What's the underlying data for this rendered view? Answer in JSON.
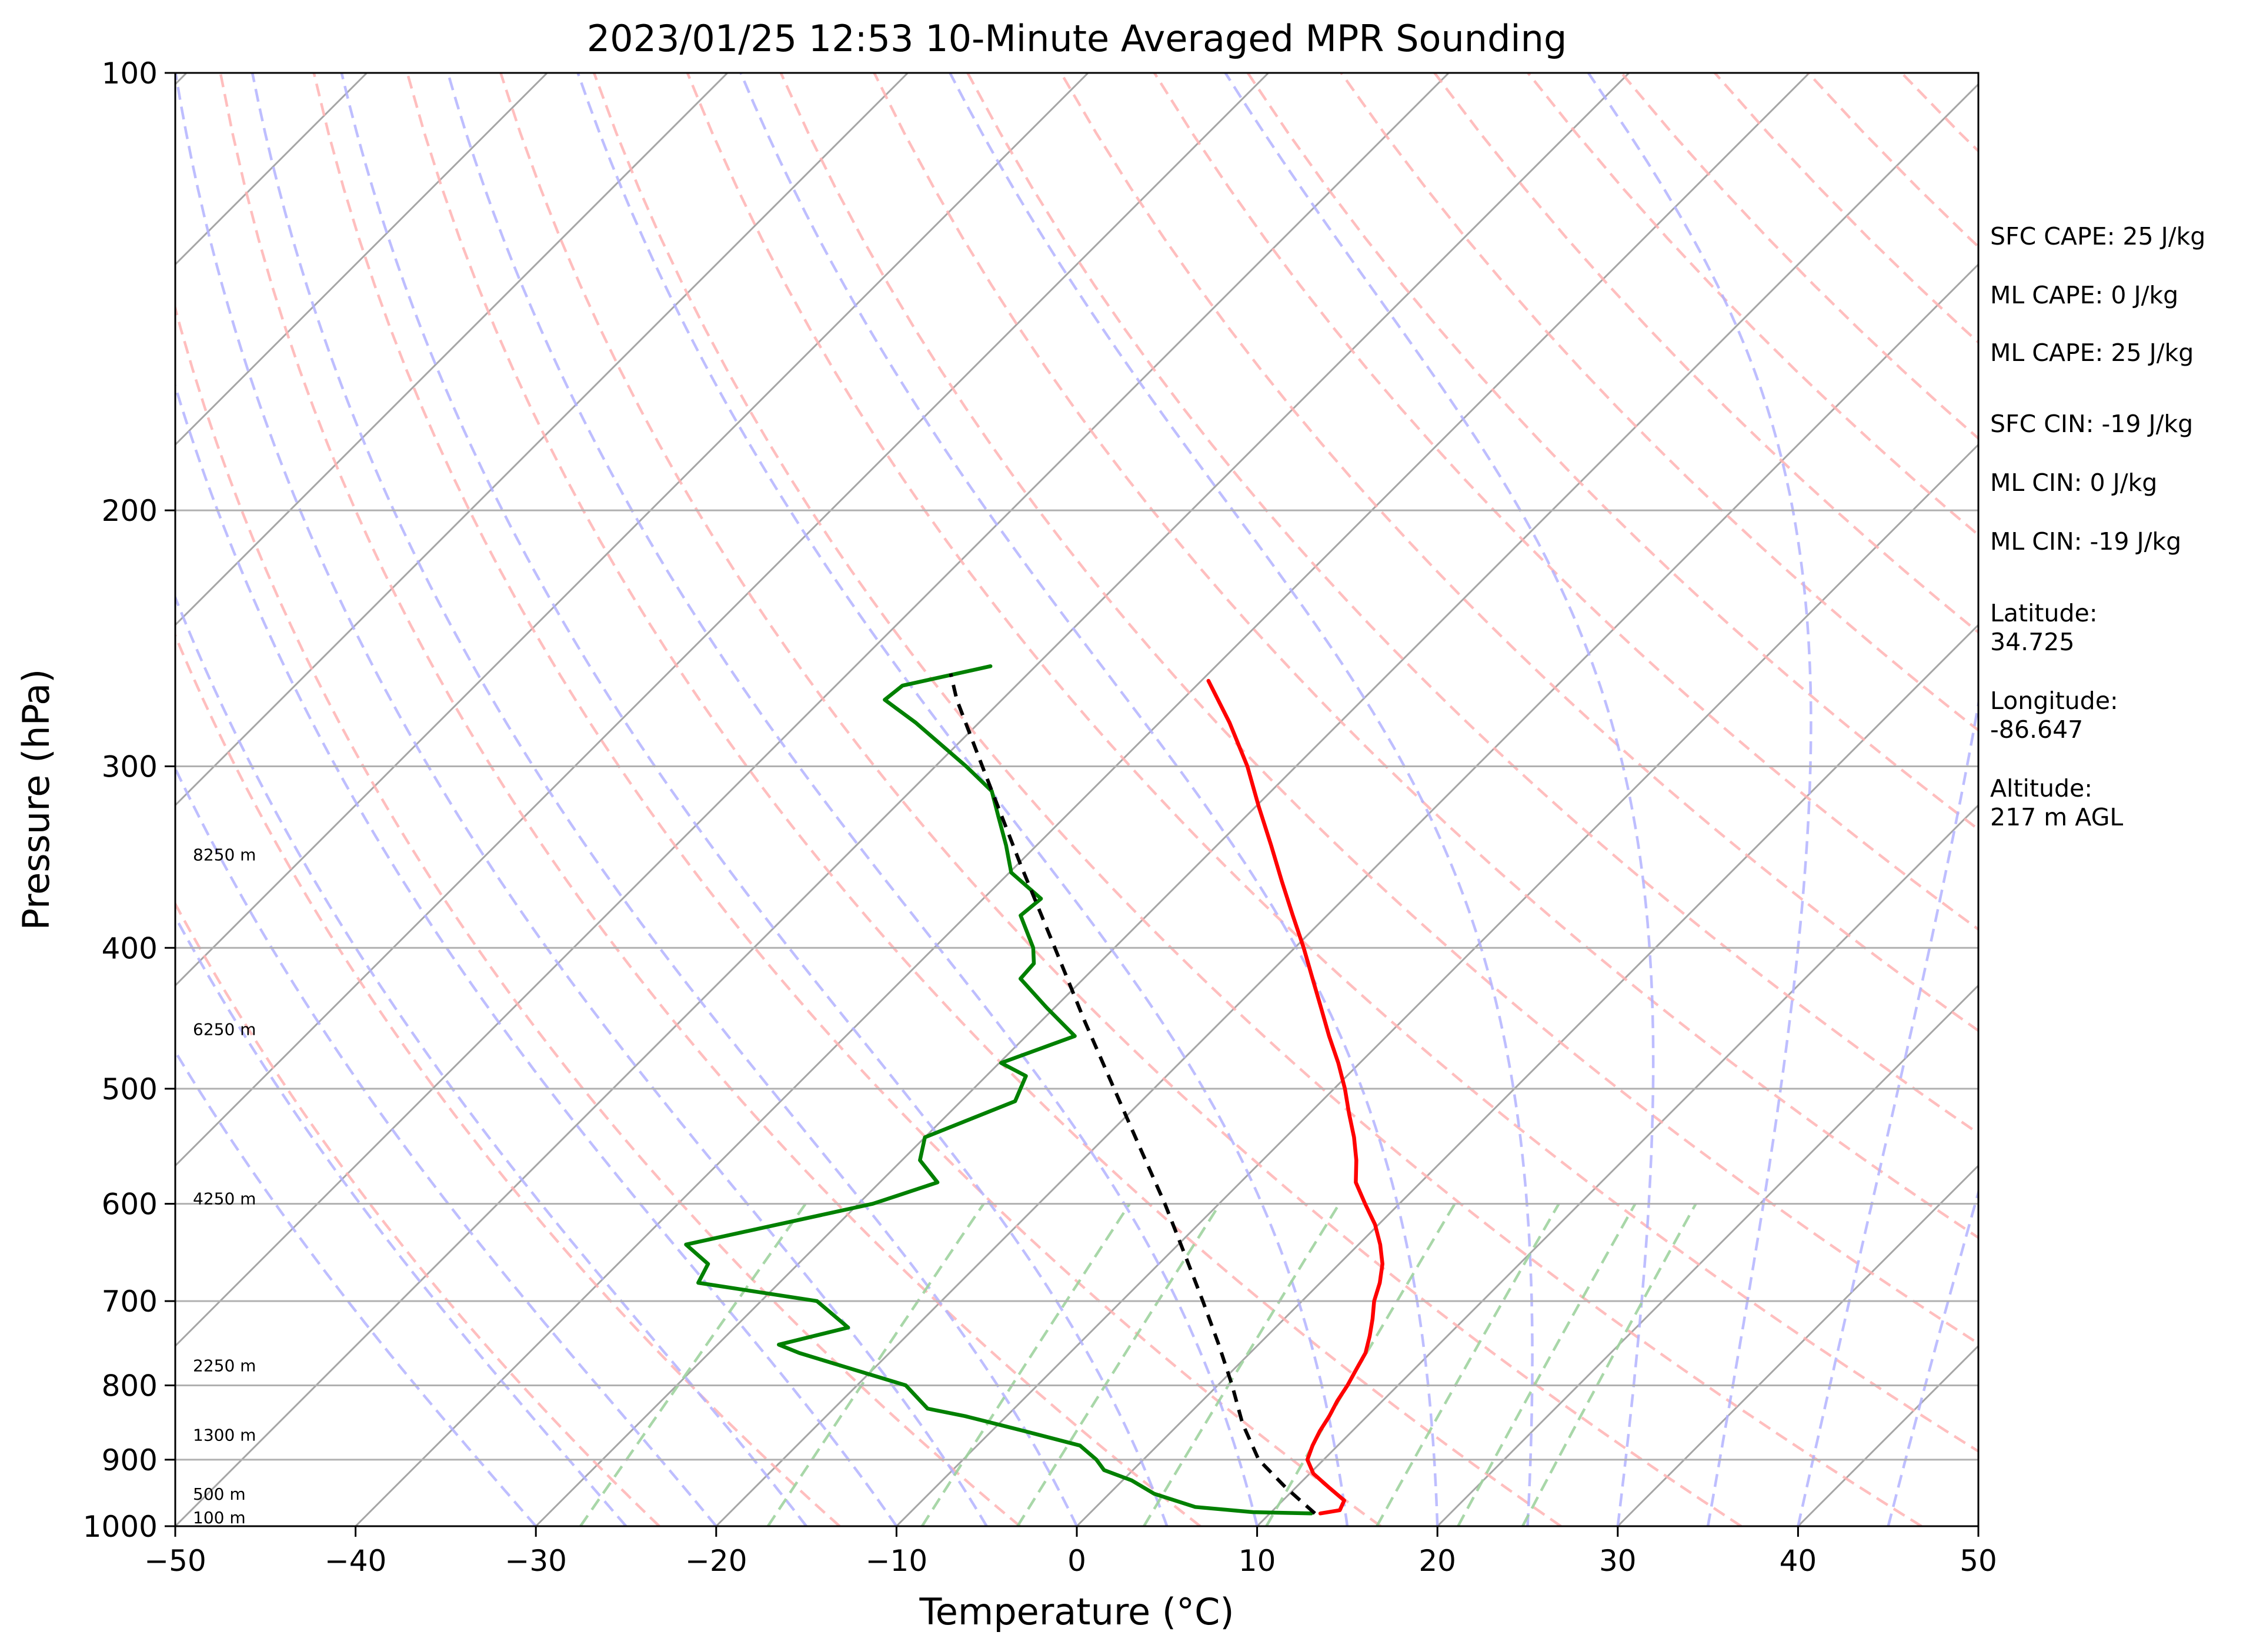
{
  "chart_data": {
    "type": "line",
    "title": "2023/01/25 12:53 10-Minute Averaged MPR Sounding",
    "xlabel": "Temperature (°C)",
    "ylabel": "Pressure (hPa)",
    "xlim": [
      -50,
      50
    ],
    "ylim": [
      1000,
      100
    ],
    "y_scale": "log",
    "skew": "skew-T (45 degree isotherms)",
    "x_ticks": [
      -50,
      -40,
      -30,
      -20,
      -10,
      0,
      10,
      20,
      30,
      40,
      50
    ],
    "y_ticks": [
      100,
      200,
      300,
      400,
      500,
      600,
      700,
      800,
      900,
      1000
    ],
    "grid": true,
    "background_lines": {
      "isotherms_color": "#a6a6a6",
      "dry_adiabats_color": "#ffb3b3",
      "moist_adiabats_color": "#b3b3ff",
      "mixing_ratio_color": "#9fd39f"
    },
    "series": [
      {
        "role": "temperature",
        "color": "#ff0000",
        "points": [
          {
            "p": 980,
            "t": 12.8
          },
          {
            "p": 975,
            "t": 13.7
          },
          {
            "p": 960,
            "t": 13.4
          },
          {
            "p": 940,
            "t": 11.8
          },
          {
            "p": 920,
            "t": 10.2
          },
          {
            "p": 900,
            "t": 9.1
          },
          {
            "p": 880,
            "t": 8.6
          },
          {
            "p": 860,
            "t": 8.2
          },
          {
            "p": 840,
            "t": 7.9
          },
          {
            "p": 820,
            "t": 7.5
          },
          {
            "p": 800,
            "t": 7.2
          },
          {
            "p": 780,
            "t": 6.8
          },
          {
            "p": 760,
            "t": 6.4
          },
          {
            "p": 740,
            "t": 5.7
          },
          {
            "p": 720,
            "t": 4.9
          },
          {
            "p": 700,
            "t": 4.0
          },
          {
            "p": 680,
            "t": 3.3
          },
          {
            "p": 660,
            "t": 2.4
          },
          {
            "p": 640,
            "t": 1.2
          },
          {
            "p": 620,
            "t": -0.2
          },
          {
            "p": 600,
            "t": -1.9
          },
          {
            "p": 580,
            "t": -3.6
          },
          {
            "p": 560,
            "t": -4.8
          },
          {
            "p": 540,
            "t": -6.2
          },
          {
            "p": 520,
            "t": -7.8
          },
          {
            "p": 500,
            "t": -9.4
          },
          {
            "p": 480,
            "t": -11.2
          },
          {
            "p": 460,
            "t": -13.2
          },
          {
            "p": 440,
            "t": -15.2
          },
          {
            "p": 420,
            "t": -17.3
          },
          {
            "p": 400,
            "t": -19.5
          },
          {
            "p": 380,
            "t": -21.9
          },
          {
            "p": 360,
            "t": -24.4
          },
          {
            "p": 340,
            "t": -27.0
          },
          {
            "p": 320,
            "t": -29.8
          },
          {
            "p": 300,
            "t": -32.7
          },
          {
            "p": 280,
            "t": -36.1
          },
          {
            "p": 262,
            "t": -39.6
          }
        ]
      },
      {
        "role": "dewpoint",
        "color": "#008000",
        "points": [
          {
            "p": 980,
            "t": 12.3
          },
          {
            "p": 978,
            "t": 9.0
          },
          {
            "p": 970,
            "t": 5.5
          },
          {
            "p": 950,
            "t": 2.5
          },
          {
            "p": 930,
            "t": 0.5
          },
          {
            "p": 915,
            "t": -1.6
          },
          {
            "p": 900,
            "t": -2.6
          },
          {
            "p": 880,
            "t": -4.3
          },
          {
            "p": 860,
            "t": -8.2
          },
          {
            "p": 840,
            "t": -12.3
          },
          {
            "p": 830,
            "t": -14.8
          },
          {
            "p": 800,
            "t": -17.3
          },
          {
            "p": 780,
            "t": -21.1
          },
          {
            "p": 760,
            "t": -25.0
          },
          {
            "p": 750,
            "t": -26.6
          },
          {
            "p": 730,
            "t": -23.7
          },
          {
            "p": 700,
            "t": -26.9
          },
          {
            "p": 680,
            "t": -34.5
          },
          {
            "p": 660,
            "t": -35.0
          },
          {
            "p": 640,
            "t": -37.3
          },
          {
            "p": 600,
            "t": -29.2
          },
          {
            "p": 580,
            "t": -26.8
          },
          {
            "p": 560,
            "t": -29.0
          },
          {
            "p": 540,
            "t": -30.0
          },
          {
            "p": 510,
            "t": -27.0
          },
          {
            "p": 490,
            "t": -27.8
          },
          {
            "p": 480,
            "t": -29.9
          },
          {
            "p": 460,
            "t": -27.3
          },
          {
            "p": 440,
            "t": -30.4
          },
          {
            "p": 420,
            "t": -33.5
          },
          {
            "p": 410,
            "t": -33.6
          },
          {
            "p": 400,
            "t": -34.5
          },
          {
            "p": 380,
            "t": -37.0
          },
          {
            "p": 370,
            "t": -36.8
          },
          {
            "p": 355,
            "t": -39.9
          },
          {
            "p": 340,
            "t": -41.7
          },
          {
            "p": 325,
            "t": -43.7
          },
          {
            "p": 312,
            "t": -45.5
          },
          {
            "p": 300,
            "t": -48.3
          },
          {
            "p": 280,
            "t": -53.5
          },
          {
            "p": 270,
            "t": -56.5
          },
          {
            "p": 264,
            "t": -56.3
          },
          {
            "p": 256,
            "t": -52.5
          }
        ]
      },
      {
        "role": "parcel profile",
        "color": "#000000",
        "style": "dashed",
        "points": [
          {
            "p": 980,
            "t": 12.5
          },
          {
            "p": 940,
            "t": 9.4
          },
          {
            "p": 900,
            "t": 6.4
          },
          {
            "p": 850,
            "t": 3.5
          },
          {
            "p": 800,
            "t": 0.8
          },
          {
            "p": 750,
            "t": -2.2
          },
          {
            "p": 700,
            "t": -5.5
          },
          {
            "p": 650,
            "t": -9.1
          },
          {
            "p": 600,
            "t": -13.0
          },
          {
            "p": 550,
            "t": -17.4
          },
          {
            "p": 500,
            "t": -22.2
          },
          {
            "p": 450,
            "t": -27.5
          },
          {
            "p": 400,
            "t": -33.3
          },
          {
            "p": 350,
            "t": -39.9
          },
          {
            "p": 300,
            "t": -47.4
          },
          {
            "p": 270,
            "t": -52.5
          },
          {
            "p": 259,
            "t": -54.3
          }
        ]
      }
    ],
    "height_markers": [
      {
        "label": "100 m",
        "p": 986
      },
      {
        "label": "500 m",
        "p": 950
      },
      {
        "label": "1300 m",
        "p": 865
      },
      {
        "label": "2250 m",
        "p": 775
      },
      {
        "label": "4250 m",
        "p": 595
      },
      {
        "label": "6250 m",
        "p": 455
      },
      {
        "label": "8250 m",
        "p": 345
      }
    ]
  },
  "info_panel": {
    "sfc_cape": "SFC CAPE: 25 J/kg",
    "ml_cape_1": "ML CAPE: 0 J/kg",
    "ml_cape_2": "ML CAPE: 25 J/kg",
    "sfc_cin": "SFC CIN: -19 J/kg",
    "ml_cin_1": "ML CIN: 0 J/kg",
    "ml_cin_2": "ML CIN: -19 J/kg",
    "latitude_label": "Latitude:",
    "latitude_value": "34.725",
    "longitude_label": "Longitude:",
    "longitude_value": "-86.647",
    "altitude_label": "Altitude:",
    "altitude_value": "217 m AGL"
  }
}
